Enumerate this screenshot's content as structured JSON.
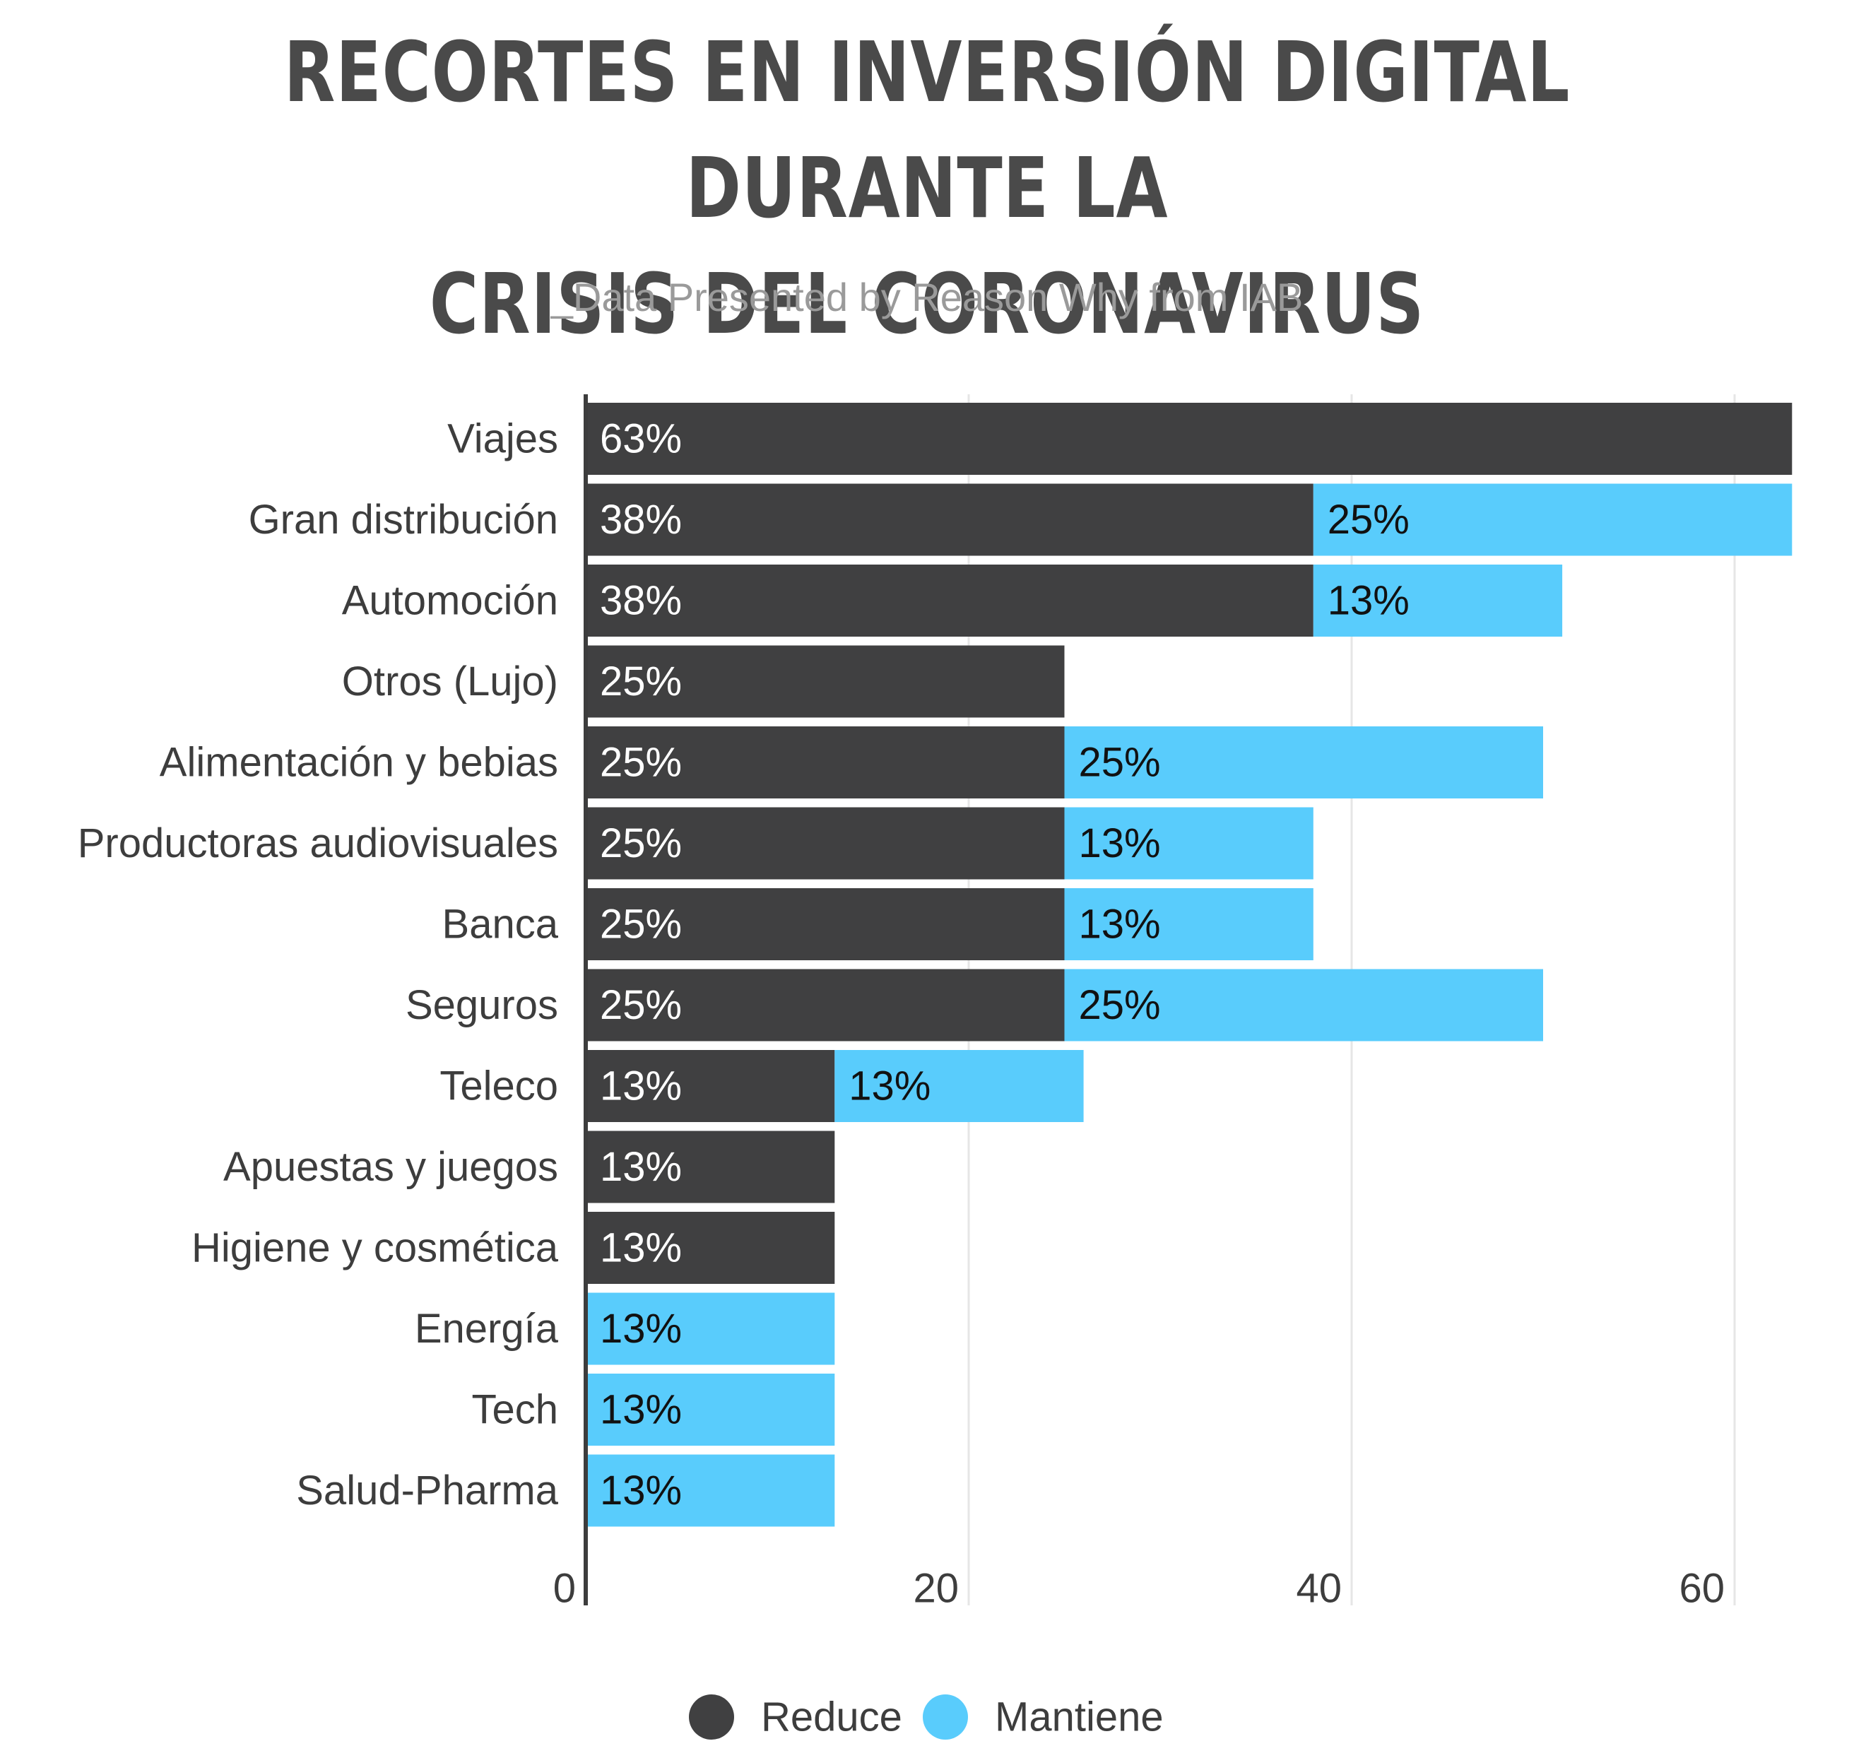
{
  "title_line1": "RECORTES EN INVERSIÓN DIGITAL DURANTE LA",
  "title_line2": "CRISIS DEL CORONAVIRUS",
  "subtitle": "_Data Presented by Reason Why from IAB",
  "colors": {
    "reduce": "#404041",
    "mantiene": "#59ccfc",
    "axis": "#3d3d3d",
    "grid": "#e6e6e6"
  },
  "chart_data": {
    "type": "bar",
    "orientation": "horizontal",
    "stacked": true,
    "categories": [
      "Viajes",
      "Gran distribución",
      "Automoción",
      "Otros (Lujo)",
      "Alimentación y bebias",
      "Productoras audiovisuales",
      "Banca",
      "Seguros",
      "Teleco",
      "Apuestas y juegos",
      "Higiene y cosmética",
      "Energía",
      "Tech",
      "Salud-Pharma"
    ],
    "series": [
      {
        "name": "Reduce",
        "values": [
          63,
          38,
          38,
          25,
          25,
          25,
          25,
          25,
          13,
          13,
          13,
          null,
          null,
          null
        ],
        "labels": [
          "63%",
          "38%",
          "38%",
          "25%",
          "25%",
          "25%",
          "25%",
          "25%",
          "13%",
          "13%",
          "13%",
          "",
          "",
          ""
        ]
      },
      {
        "name": "Mantiene",
        "values": [
          null,
          25,
          13,
          null,
          25,
          13,
          13,
          25,
          13,
          null,
          null,
          13,
          13,
          13
        ],
        "labels": [
          "",
          "25%",
          "13%",
          "",
          "25%",
          "13%",
          "13%",
          "25%",
          "13%",
          "",
          "",
          "13%",
          "13%",
          "13%"
        ]
      }
    ],
    "xlim": [
      0,
      63
    ],
    "xticks": [
      0,
      20,
      40,
      60
    ],
    "xtick_labels": [
      "0",
      "20",
      "40",
      "60"
    ],
    "grid": true,
    "legend_position": "bottom-center"
  }
}
